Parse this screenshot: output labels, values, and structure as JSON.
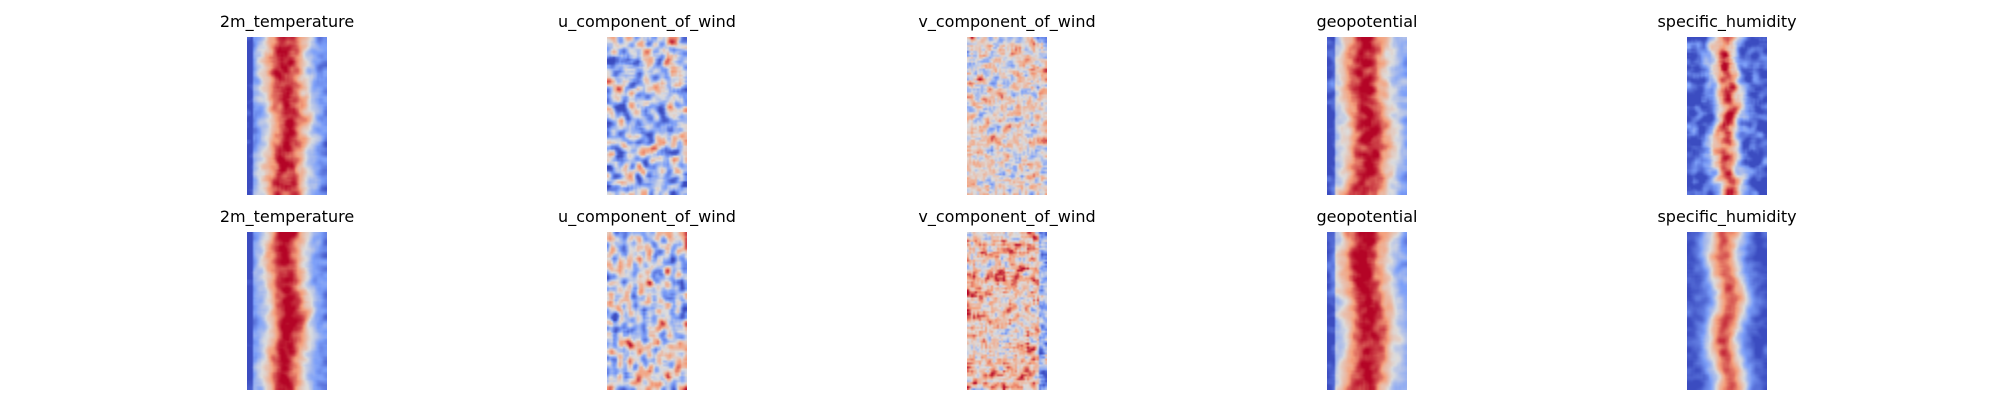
{
  "figure": {
    "colormap": "coolwarm",
    "rows": [
      {
        "panels": [
          {
            "title": "2m_temperature",
            "field": "temperature"
          },
          {
            "title": "u_component_of_wind",
            "field": "u_wind"
          },
          {
            "title": "v_component_of_wind",
            "field": "v_wind"
          },
          {
            "title": "geopotential",
            "field": "geopotential"
          },
          {
            "title": "specific_humidity",
            "field": "humidity"
          }
        ]
      },
      {
        "panels": [
          {
            "title": "2m_temperature",
            "field": "temperature"
          },
          {
            "title": "u_component_of_wind",
            "field": "u_wind"
          },
          {
            "title": "v_component_of_wind",
            "field": "v_wind"
          },
          {
            "title": "geopotential",
            "field": "geopotential"
          },
          {
            "title": "specific_humidity",
            "field": "humidity"
          }
        ]
      }
    ]
  },
  "chart_data": {
    "type": "heatmap",
    "colormap": "coolwarm",
    "axes_visible": false,
    "panels": [
      {
        "row": 1,
        "title": "2m_temperature"
      },
      {
        "row": 1,
        "title": "u_component_of_wind"
      },
      {
        "row": 1,
        "title": "v_component_of_wind"
      },
      {
        "row": 1,
        "title": "geopotential"
      },
      {
        "row": 1,
        "title": "specific_humidity"
      },
      {
        "row": 2,
        "title": "2m_temperature"
      },
      {
        "row": 2,
        "title": "u_component_of_wind"
      },
      {
        "row": 2,
        "title": "v_component_of_wind"
      },
      {
        "row": 2,
        "title": "geopotential"
      },
      {
        "row": 2,
        "title": "specific_humidity"
      }
    ]
  }
}
